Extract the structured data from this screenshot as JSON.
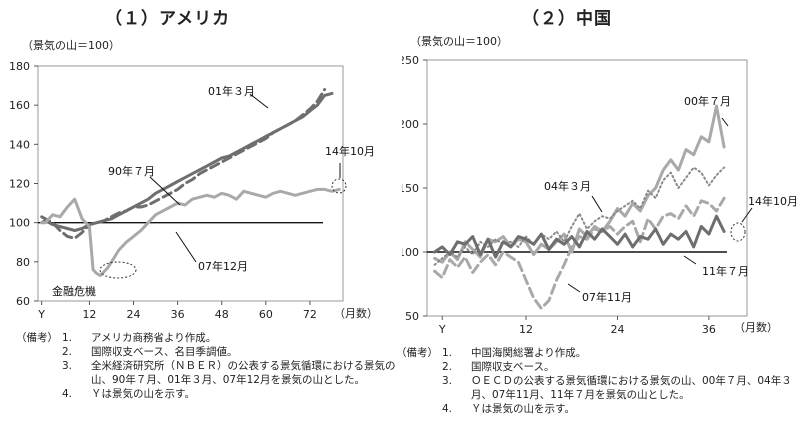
{
  "chart_data": [
    {
      "type": "line",
      "panel_title": "（１）アメリカ",
      "ylabel": "（景気の山＝100）",
      "xlabel": "（月数）",
      "ylim": [
        60,
        180
      ],
      "xlim": [
        -2,
        81
      ],
      "y_ticks": [
        "60",
        "80",
        "100",
        "120",
        "140",
        "160",
        "180"
      ],
      "x_ticks": [
        "Y",
        "12",
        "24",
        "36",
        "48",
        "60",
        "72"
      ],
      "reference_line": 100,
      "series": [
        {
          "name": "01年３月",
          "color": "#6e6e6e",
          "dash": "solid",
          "width": 3,
          "x": [
            -1,
            0,
            2,
            4,
            6,
            8,
            10,
            12,
            14,
            16,
            18,
            20,
            22,
            24,
            26,
            28,
            30,
            32,
            34,
            36,
            38,
            40,
            42,
            44,
            46,
            48,
            50,
            52,
            54,
            56,
            58,
            60,
            62,
            64,
            66,
            68,
            70,
            72,
            74,
            76,
            78
          ],
          "y": [
            100,
            101,
            99,
            98,
            97,
            96,
            97,
            99,
            100,
            101,
            102,
            104,
            106,
            108,
            110,
            112,
            115,
            117,
            119,
            121,
            123,
            125,
            127,
            129,
            131,
            133,
            134,
            136,
            138,
            140,
            142,
            144,
            146,
            148,
            150,
            152,
            154,
            157,
            160,
            165,
            166
          ]
        },
        {
          "name": "90年７月",
          "color": "#6e6e6e",
          "dash": "dash",
          "width": 3,
          "x": [
            -1,
            0,
            2,
            4,
            6,
            8,
            10,
            12,
            14,
            16,
            18,
            20,
            22,
            24,
            26,
            28,
            30,
            32,
            34,
            36,
            38,
            40,
            42,
            44,
            46,
            48,
            50,
            52,
            54,
            56,
            58,
            60,
            62,
            64,
            66,
            68,
            70,
            72,
            74,
            76
          ],
          "y": [
            103,
            102,
            100,
            96,
            93,
            92,
            95,
            99,
            100,
            101,
            103,
            105,
            106,
            108,
            108,
            109,
            111,
            113,
            115,
            117,
            120,
            122,
            125,
            127,
            129,
            131,
            133,
            135,
            137,
            139,
            141,
            143,
            146,
            148,
            150,
            152,
            155,
            158,
            162,
            168
          ]
        },
        {
          "name": "07年12月",
          "color": "#a9a9a9",
          "dash": "solid",
          "width": 3,
          "x": [
            -1,
            0,
            2,
            4,
            6,
            8,
            10,
            12,
            13,
            14,
            15,
            16,
            17,
            18,
            19,
            20,
            22,
            24,
            26,
            28,
            30,
            32,
            34,
            36,
            38,
            40,
            42,
            44,
            46,
            48,
            50,
            52,
            54,
            56,
            58,
            60,
            62,
            64,
            66,
            68,
            70,
            72,
            74,
            76,
            78,
            80
          ],
          "y": [
            100,
            100,
            104,
            103,
            108,
            112,
            102,
            98,
            76,
            74,
            73,
            75,
            77,
            80,
            83,
            86,
            90,
            93,
            96,
            100,
            104,
            106,
            108,
            110,
            109,
            112,
            113,
            114,
            113,
            115,
            114,
            112,
            116,
            115,
            114,
            113,
            115,
            116,
            115,
            114,
            115,
            116,
            117,
            117,
            116,
            117
          ]
        }
      ],
      "annotations": [
        "01年３月",
        "90年７月",
        "07年12月",
        "14年10月",
        "金融危機"
      ]
    },
    {
      "type": "line",
      "panel_title": "（２）中国",
      "ylabel": "（景気の山＝100）",
      "xlabel": "（月数）",
      "ylim": [
        50,
        250
      ],
      "xlim": [
        -1,
        41
      ],
      "y_ticks": [
        "50",
        "100",
        "150",
        "200",
        "250"
      ],
      "x_ticks": [
        "Y",
        "12",
        "24",
        "36"
      ],
      "reference_line": 100,
      "series": [
        {
          "name": "00年７月",
          "color": "#a9a9a9",
          "dash": "solid",
          "width": 3,
          "x": [
            0,
            1,
            2,
            3,
            4,
            5,
            6,
            7,
            8,
            9,
            10,
            11,
            12,
            13,
            14,
            15,
            16,
            17,
            18,
            19,
            20,
            21,
            22,
            23,
            24,
            25,
            26,
            27,
            28,
            29,
            30,
            31,
            32,
            33,
            34,
            35,
            36,
            37,
            38
          ],
          "y": [
            95,
            92,
            100,
            94,
            108,
            102,
            96,
            110,
            108,
            112,
            104,
            110,
            108,
            98,
            106,
            102,
            108,
            114,
            100,
            118,
            112,
            120,
            116,
            124,
            134,
            128,
            138,
            132,
            144,
            150,
            164,
            172,
            164,
            180,
            176,
            190,
            186,
            214,
            182
          ]
        },
        {
          "name": "04年３月",
          "color": "#8a8a8a",
          "dash": "dot",
          "width": 2,
          "x": [
            0,
            1,
            2,
            3,
            4,
            5,
            6,
            7,
            8,
            9,
            10,
            11,
            12,
            13,
            14,
            15,
            16,
            17,
            18,
            19,
            20,
            21,
            22,
            23,
            24,
            25,
            26,
            27,
            28,
            29,
            30,
            31,
            32,
            33,
            34,
            35,
            36,
            37,
            38
          ],
          "y": [
            90,
            95,
            100,
            96,
            104,
            98,
            108,
            104,
            110,
            106,
            108,
            104,
            112,
            106,
            114,
            110,
            116,
            108,
            120,
            130,
            118,
            124,
            128,
            126,
            132,
            136,
            140,
            134,
            148,
            142,
            156,
            162,
            150,
            158,
            166,
            162,
            152,
            160,
            166
          ]
        },
        {
          "name": "07年11月",
          "color": "#a9a9a9",
          "dash": "dash",
          "width": 3,
          "x": [
            0,
            1,
            2,
            3,
            4,
            5,
            6,
            7,
            8,
            9,
            10,
            11,
            12,
            13,
            14,
            15,
            16,
            17,
            18,
            19,
            20,
            21,
            22,
            23,
            24,
            25,
            26,
            27,
            28,
            29,
            30,
            31,
            32,
            33,
            34,
            35,
            36,
            37,
            38
          ],
          "y": [
            85,
            80,
            94,
            88,
            96,
            84,
            92,
            98,
            90,
            100,
            96,
            92,
            78,
            64,
            56,
            62,
            78,
            90,
            104,
            112,
            110,
            118,
            116,
            120,
            114,
            120,
            124,
            108,
            126,
            118,
            128,
            130,
            126,
            136,
            128,
            140,
            138,
            132,
            142
          ]
        },
        {
          "name": "11年７月",
          "color": "#6e6e6e",
          "dash": "solid",
          "width": 3,
          "x": [
            0,
            1,
            2,
            3,
            4,
            5,
            6,
            7,
            8,
            9,
            10,
            11,
            12,
            13,
            14,
            15,
            16,
            17,
            18,
            19,
            20,
            21,
            22,
            23,
            24,
            25,
            26,
            27,
            28,
            29,
            30,
            31,
            32,
            33,
            34,
            35,
            36,
            37,
            38
          ],
          "y": [
            100,
            104,
            98,
            108,
            106,
            112,
            98,
            110,
            96,
            108,
            104,
            112,
            110,
            106,
            114,
            102,
            110,
            106,
            112,
            104,
            116,
            110,
            118,
            112,
            106,
            114,
            104,
            112,
            110,
            118,
            106,
            114,
            110,
            116,
            104,
            120,
            114,
            128,
            116
          ]
        }
      ],
      "annotations": [
        "00年７月",
        "04年３月",
        "07年11月",
        "11年７月",
        "14年10月"
      ]
    }
  ],
  "notes_us": {
    "head": "（備考）",
    "items": [
      {
        "num": "1.",
        "text": "アメリカ商務省より作成。"
      },
      {
        "num": "2.",
        "text": "国際収支ベース、名目季調値。"
      },
      {
        "num": "3.",
        "text": "全米経済研究所（ＮＢＥＲ）の公表する景気循環における景気の山、90年７月、01年３月、07年12月を景気の山とした。"
      },
      {
        "num": "4.",
        "text": "Ｙは景気の山を示す。"
      }
    ]
  },
  "notes_cn": {
    "head": "（備考）",
    "items": [
      {
        "num": "1.",
        "text": "中国海関総署より作成。"
      },
      {
        "num": "2.",
        "text": "国際収支ベース。"
      },
      {
        "num": "3.",
        "text": "ＯＥＣＤの公表する景気循環における景気の山、00年７月、04年３月、07年11月、11年７月を景気の山とした。"
      },
      {
        "num": "4.",
        "text": "Ｙは景気の山を示す。"
      }
    ]
  }
}
